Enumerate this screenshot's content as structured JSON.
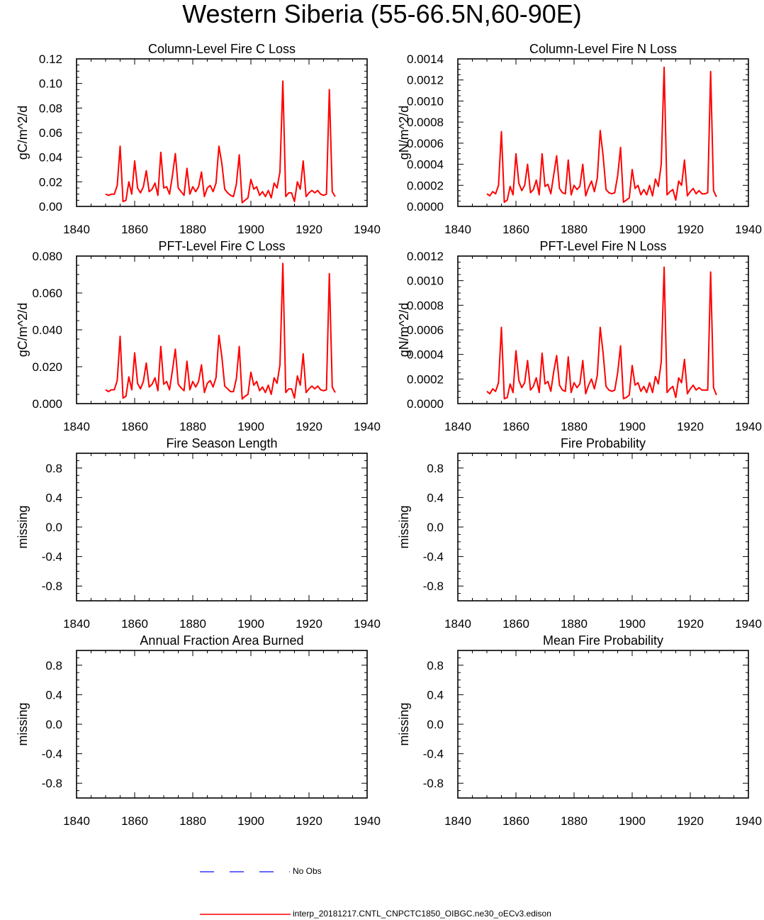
{
  "title": "Western Siberia (55-66.5N,60-90E)",
  "colors": {
    "model": "#ff0000",
    "obs": "#3333ff",
    "axis": "#000000"
  },
  "legend": {
    "obs_label": "No Obs",
    "model_label": "interp_20181217.CNTL_CNPCTC1850_OIBGC.ne30_oECv3.edison"
  },
  "chart_data": [
    {
      "type": "line",
      "title": "Column-Level Fire C Loss",
      "ylabel": "gC/m^2/d",
      "xlim": [
        1840,
        1940
      ],
      "ylim": [
        0,
        0.12
      ],
      "xticks": [
        "1840",
        "1860",
        "1880",
        "1900",
        "1920",
        "1940"
      ],
      "yticks": [
        "0.00",
        "0.02",
        "0.04",
        "0.06",
        "0.08",
        "0.10",
        "0.12"
      ],
      "series": [
        {
          "x": [
            1850,
            1851,
            1852,
            1853,
            1854,
            1855,
            1856,
            1857,
            1858,
            1859,
            1860,
            1861,
            1862,
            1863,
            1864,
            1865,
            1866,
            1867,
            1868,
            1869,
            1870,
            1871,
            1872,
            1873,
            1874,
            1875,
            1876,
            1877,
            1878,
            1879,
            1880,
            1881,
            1882,
            1883,
            1884,
            1885,
            1886,
            1887,
            1888,
            1889,
            1890,
            1891,
            1892,
            1893,
            1894,
            1895,
            1896,
            1897,
            1898,
            1899,
            1900,
            1901,
            1902,
            1903,
            1904,
            1905,
            1906,
            1907,
            1908,
            1909,
            1910,
            1911,
            1912,
            1913,
            1914,
            1915,
            1916,
            1917,
            1918,
            1919,
            1920,
            1921,
            1922,
            1923,
            1924,
            1925,
            1926,
            1927,
            1928,
            1929
          ],
          "values": [
            0.01,
            0.009,
            0.01,
            0.01,
            0.017,
            0.049,
            0.004,
            0.005,
            0.02,
            0.01,
            0.037,
            0.015,
            0.011,
            0.016,
            0.029,
            0.012,
            0.014,
            0.019,
            0.009,
            0.044,
            0.015,
            0.016,
            0.01,
            0.025,
            0.043,
            0.015,
            0.012,
            0.009,
            0.031,
            0.01,
            0.016,
            0.012,
            0.016,
            0.028,
            0.008,
            0.015,
            0.017,
            0.012,
            0.019,
            0.049,
            0.035,
            0.014,
            0.011,
            0.009,
            0.008,
            0.018,
            0.042,
            0.003,
            0.005,
            0.007,
            0.022,
            0.014,
            0.016,
            0.009,
            0.012,
            0.008,
            0.013,
            0.007,
            0.019,
            0.015,
            0.028,
            0.102,
            0.008,
            0.011,
            0.011,
            0.004,
            0.02,
            0.014,
            0.037,
            0.008,
            0.011,
            0.013,
            0.011,
            0.013,
            0.01,
            0.009,
            0.01,
            0.095,
            0.012,
            0.008
          ]
        }
      ]
    },
    {
      "type": "line",
      "title": "Column-Level Fire N Loss",
      "ylabel": "gN/m^2/d",
      "xlim": [
        1840,
        1940
      ],
      "ylim": [
        0,
        0.0014
      ],
      "xticks": [
        "1840",
        "1860",
        "1880",
        "1900",
        "1920",
        "1940"
      ],
      "yticks": [
        "0.0000",
        "0.0002",
        "0.0004",
        "0.0006",
        "0.0008",
        "0.0010",
        "0.0012",
        "0.0014"
      ],
      "series": [
        {
          "x": [
            1850,
            1851,
            1852,
            1853,
            1854,
            1855,
            1856,
            1857,
            1858,
            1859,
            1860,
            1861,
            1862,
            1863,
            1864,
            1865,
            1866,
            1867,
            1868,
            1869,
            1870,
            1871,
            1872,
            1873,
            1874,
            1875,
            1876,
            1877,
            1878,
            1879,
            1880,
            1881,
            1882,
            1883,
            1884,
            1885,
            1886,
            1887,
            1888,
            1889,
            1890,
            1891,
            1892,
            1893,
            1894,
            1895,
            1896,
            1897,
            1898,
            1899,
            1900,
            1901,
            1902,
            1903,
            1904,
            1905,
            1906,
            1907,
            1908,
            1909,
            1910,
            1911,
            1912,
            1913,
            1914,
            1915,
            1916,
            1917,
            1918,
            1919,
            1920,
            1921,
            1922,
            1923,
            1924,
            1925,
            1926,
            1927,
            1928,
            1929
          ],
          "values": [
            0.00012,
            0.0001,
            0.00014,
            0.00012,
            0.0002,
            0.00071,
            4e-05,
            6e-05,
            0.00019,
            0.00011,
            0.0005,
            0.00022,
            0.00015,
            0.0002,
            0.0004,
            0.00013,
            0.00016,
            0.00025,
            0.00011,
            0.0005,
            0.00019,
            0.00021,
            0.00012,
            0.0003,
            0.00048,
            0.00017,
            0.00013,
            0.00012,
            0.00044,
            0.00011,
            0.0002,
            0.00016,
            0.00019,
            0.0004,
            0.0001,
            0.00018,
            0.00024,
            0.00014,
            0.00027,
            0.00072,
            0.00048,
            0.00016,
            0.00013,
            0.00012,
            0.00013,
            0.00029,
            0.00056,
            4e-05,
            6e-05,
            8e-05,
            0.00035,
            0.00017,
            0.0002,
            0.00011,
            0.00016,
            0.00011,
            0.0002,
            0.0001,
            0.00026,
            0.00019,
            0.0004,
            0.00132,
            0.00011,
            0.00014,
            0.00016,
            6e-05,
            0.00024,
            0.0002,
            0.00044,
            0.0001,
            0.00014,
            0.00017,
            0.00012,
            0.00015,
            0.00012,
            0.00012,
            0.00013,
            0.00128,
            0.00015,
            9e-05
          ]
        }
      ]
    },
    {
      "type": "line",
      "title": "PFT-Level Fire C Loss",
      "ylabel": "gC/m^2/d",
      "xlim": [
        1840,
        1940
      ],
      "ylim": [
        0,
        0.08
      ],
      "xticks": [
        "1840",
        "1860",
        "1880",
        "1900",
        "1920",
        "1940"
      ],
      "yticks": [
        "0.000",
        "0.020",
        "0.040",
        "0.060",
        "0.080"
      ],
      "series": [
        {
          "x": [
            1850,
            1851,
            1852,
            1853,
            1854,
            1855,
            1856,
            1857,
            1858,
            1859,
            1860,
            1861,
            1862,
            1863,
            1864,
            1865,
            1866,
            1867,
            1868,
            1869,
            1870,
            1871,
            1872,
            1873,
            1874,
            1875,
            1876,
            1877,
            1878,
            1879,
            1880,
            1881,
            1882,
            1883,
            1884,
            1885,
            1886,
            1887,
            1888,
            1889,
            1890,
            1891,
            1892,
            1893,
            1894,
            1895,
            1896,
            1897,
            1898,
            1899,
            1900,
            1901,
            1902,
            1903,
            1904,
            1905,
            1906,
            1907,
            1908,
            1909,
            1910,
            1911,
            1912,
            1913,
            1914,
            1915,
            1916,
            1917,
            1918,
            1919,
            1920,
            1921,
            1922,
            1923,
            1924,
            1925,
            1926,
            1927,
            1928,
            1929
          ],
          "values": [
            0.0075,
            0.0065,
            0.0075,
            0.0075,
            0.0125,
            0.0365,
            0.003,
            0.004,
            0.0145,
            0.0075,
            0.0275,
            0.011,
            0.008,
            0.012,
            0.022,
            0.009,
            0.0105,
            0.014,
            0.007,
            0.031,
            0.0105,
            0.012,
            0.0075,
            0.018,
            0.0295,
            0.0105,
            0.0085,
            0.007,
            0.023,
            0.0075,
            0.012,
            0.009,
            0.012,
            0.021,
            0.006,
            0.011,
            0.0125,
            0.009,
            0.014,
            0.037,
            0.0255,
            0.0095,
            0.008,
            0.0065,
            0.0065,
            0.0135,
            0.031,
            0.0025,
            0.004,
            0.005,
            0.017,
            0.01,
            0.012,
            0.007,
            0.009,
            0.006,
            0.01,
            0.005,
            0.014,
            0.011,
            0.021,
            0.076,
            0.006,
            0.008,
            0.008,
            0.003,
            0.015,
            0.01,
            0.027,
            0.006,
            0.008,
            0.0095,
            0.008,
            0.0095,
            0.0075,
            0.007,
            0.0075,
            0.0705,
            0.009,
            0.006
          ]
        }
      ]
    },
    {
      "type": "line",
      "title": "PFT-Level Fire N Loss",
      "ylabel": "gN/m^2/d",
      "xlim": [
        1840,
        1940
      ],
      "ylim": [
        0,
        0.0012
      ],
      "xticks": [
        "1840",
        "1860",
        "1880",
        "1900",
        "1920",
        "1940"
      ],
      "yticks": [
        "0.0000",
        "0.0002",
        "0.0004",
        "0.0006",
        "0.0008",
        "0.0010",
        "0.0012"
      ],
      "series": [
        {
          "x": [
            1850,
            1851,
            1852,
            1853,
            1854,
            1855,
            1856,
            1857,
            1858,
            1859,
            1860,
            1861,
            1862,
            1863,
            1864,
            1865,
            1866,
            1867,
            1868,
            1869,
            1870,
            1871,
            1872,
            1873,
            1874,
            1875,
            1876,
            1877,
            1878,
            1879,
            1880,
            1881,
            1882,
            1883,
            1884,
            1885,
            1886,
            1887,
            1888,
            1889,
            1890,
            1891,
            1892,
            1893,
            1894,
            1895,
            1896,
            1897,
            1898,
            1899,
            1900,
            1901,
            1902,
            1903,
            1904,
            1905,
            1906,
            1907,
            1908,
            1909,
            1910,
            1911,
            1912,
            1913,
            1914,
            1915,
            1916,
            1917,
            1918,
            1919,
            1920,
            1921,
            1922,
            1923,
            1924,
            1925,
            1926,
            1927,
            1928,
            1929
          ],
          "values": [
            0.0001,
            8e-05,
            0.00012,
            0.0001,
            0.00017,
            0.00062,
            4e-05,
            5e-05,
            0.00016,
            9e-05,
            0.00043,
            0.00019,
            0.00013,
            0.00017,
            0.00035,
            0.00011,
            0.00014,
            0.00021,
            9e-05,
            0.00041,
            0.00016,
            0.00018,
            0.0001,
            0.00026,
            0.00039,
            0.00015,
            0.00011,
            0.0001,
            0.00038,
            9e-05,
            0.00017,
            0.00013,
            0.00016,
            0.00035,
            8e-05,
            0.00015,
            0.0002,
            0.00012,
            0.00023,
            0.00062,
            0.00041,
            0.00014,
            0.00011,
            0.0001,
            0.00011,
            0.00025,
            0.00047,
            4e-05,
            5e-05,
            7e-05,
            0.00031,
            0.00015,
            0.00017,
            0.0001,
            0.00014,
            9e-05,
            0.00017,
            9e-05,
            0.00022,
            0.00016,
            0.00034,
            0.00111,
            9e-05,
            0.00012,
            0.00014,
            5e-05,
            0.00021,
            0.00017,
            0.00036,
            8e-05,
            0.00012,
            0.00015,
            0.00011,
            0.00013,
            0.00011,
            0.00011,
            0.00011,
            0.00107,
            0.00013,
            7e-05
          ]
        }
      ]
    },
    {
      "type": "line",
      "title": "Fire Season Length",
      "ylabel": "missing",
      "xlim": [
        1840,
        1940
      ],
      "ylim": [
        -1,
        1
      ],
      "xticks": [
        "1840",
        "1860",
        "1880",
        "1900",
        "1920",
        "1940"
      ],
      "yticks": [
        "-0.8",
        "-0.4",
        "0.0",
        "0.4",
        "0.8"
      ],
      "series": []
    },
    {
      "type": "line",
      "title": "Fire Probability",
      "ylabel": "missing",
      "xlim": [
        1840,
        1940
      ],
      "ylim": [
        -1,
        1
      ],
      "xticks": [
        "1840",
        "1860",
        "1880",
        "1900",
        "1920",
        "1940"
      ],
      "yticks": [
        "-0.8",
        "-0.4",
        "0.0",
        "0.4",
        "0.8"
      ],
      "series": []
    },
    {
      "type": "line",
      "title": "Annual Fraction Area Burned",
      "ylabel": "missing",
      "xlim": [
        1840,
        1940
      ],
      "ylim": [
        -1,
        1
      ],
      "xticks": [
        "1840",
        "1860",
        "1880",
        "1900",
        "1920",
        "1940"
      ],
      "yticks": [
        "-0.8",
        "-0.4",
        "0.0",
        "0.4",
        "0.8"
      ],
      "series": []
    },
    {
      "type": "line",
      "title": "Mean Fire Probability",
      "ylabel": "missing",
      "xlim": [
        1840,
        1940
      ],
      "ylim": [
        -1,
        1
      ],
      "xticks": [
        "1840",
        "1860",
        "1880",
        "1900",
        "1920",
        "1940"
      ],
      "yticks": [
        "-0.8",
        "-0.4",
        "0.0",
        "0.4",
        "0.8"
      ],
      "series": []
    }
  ]
}
